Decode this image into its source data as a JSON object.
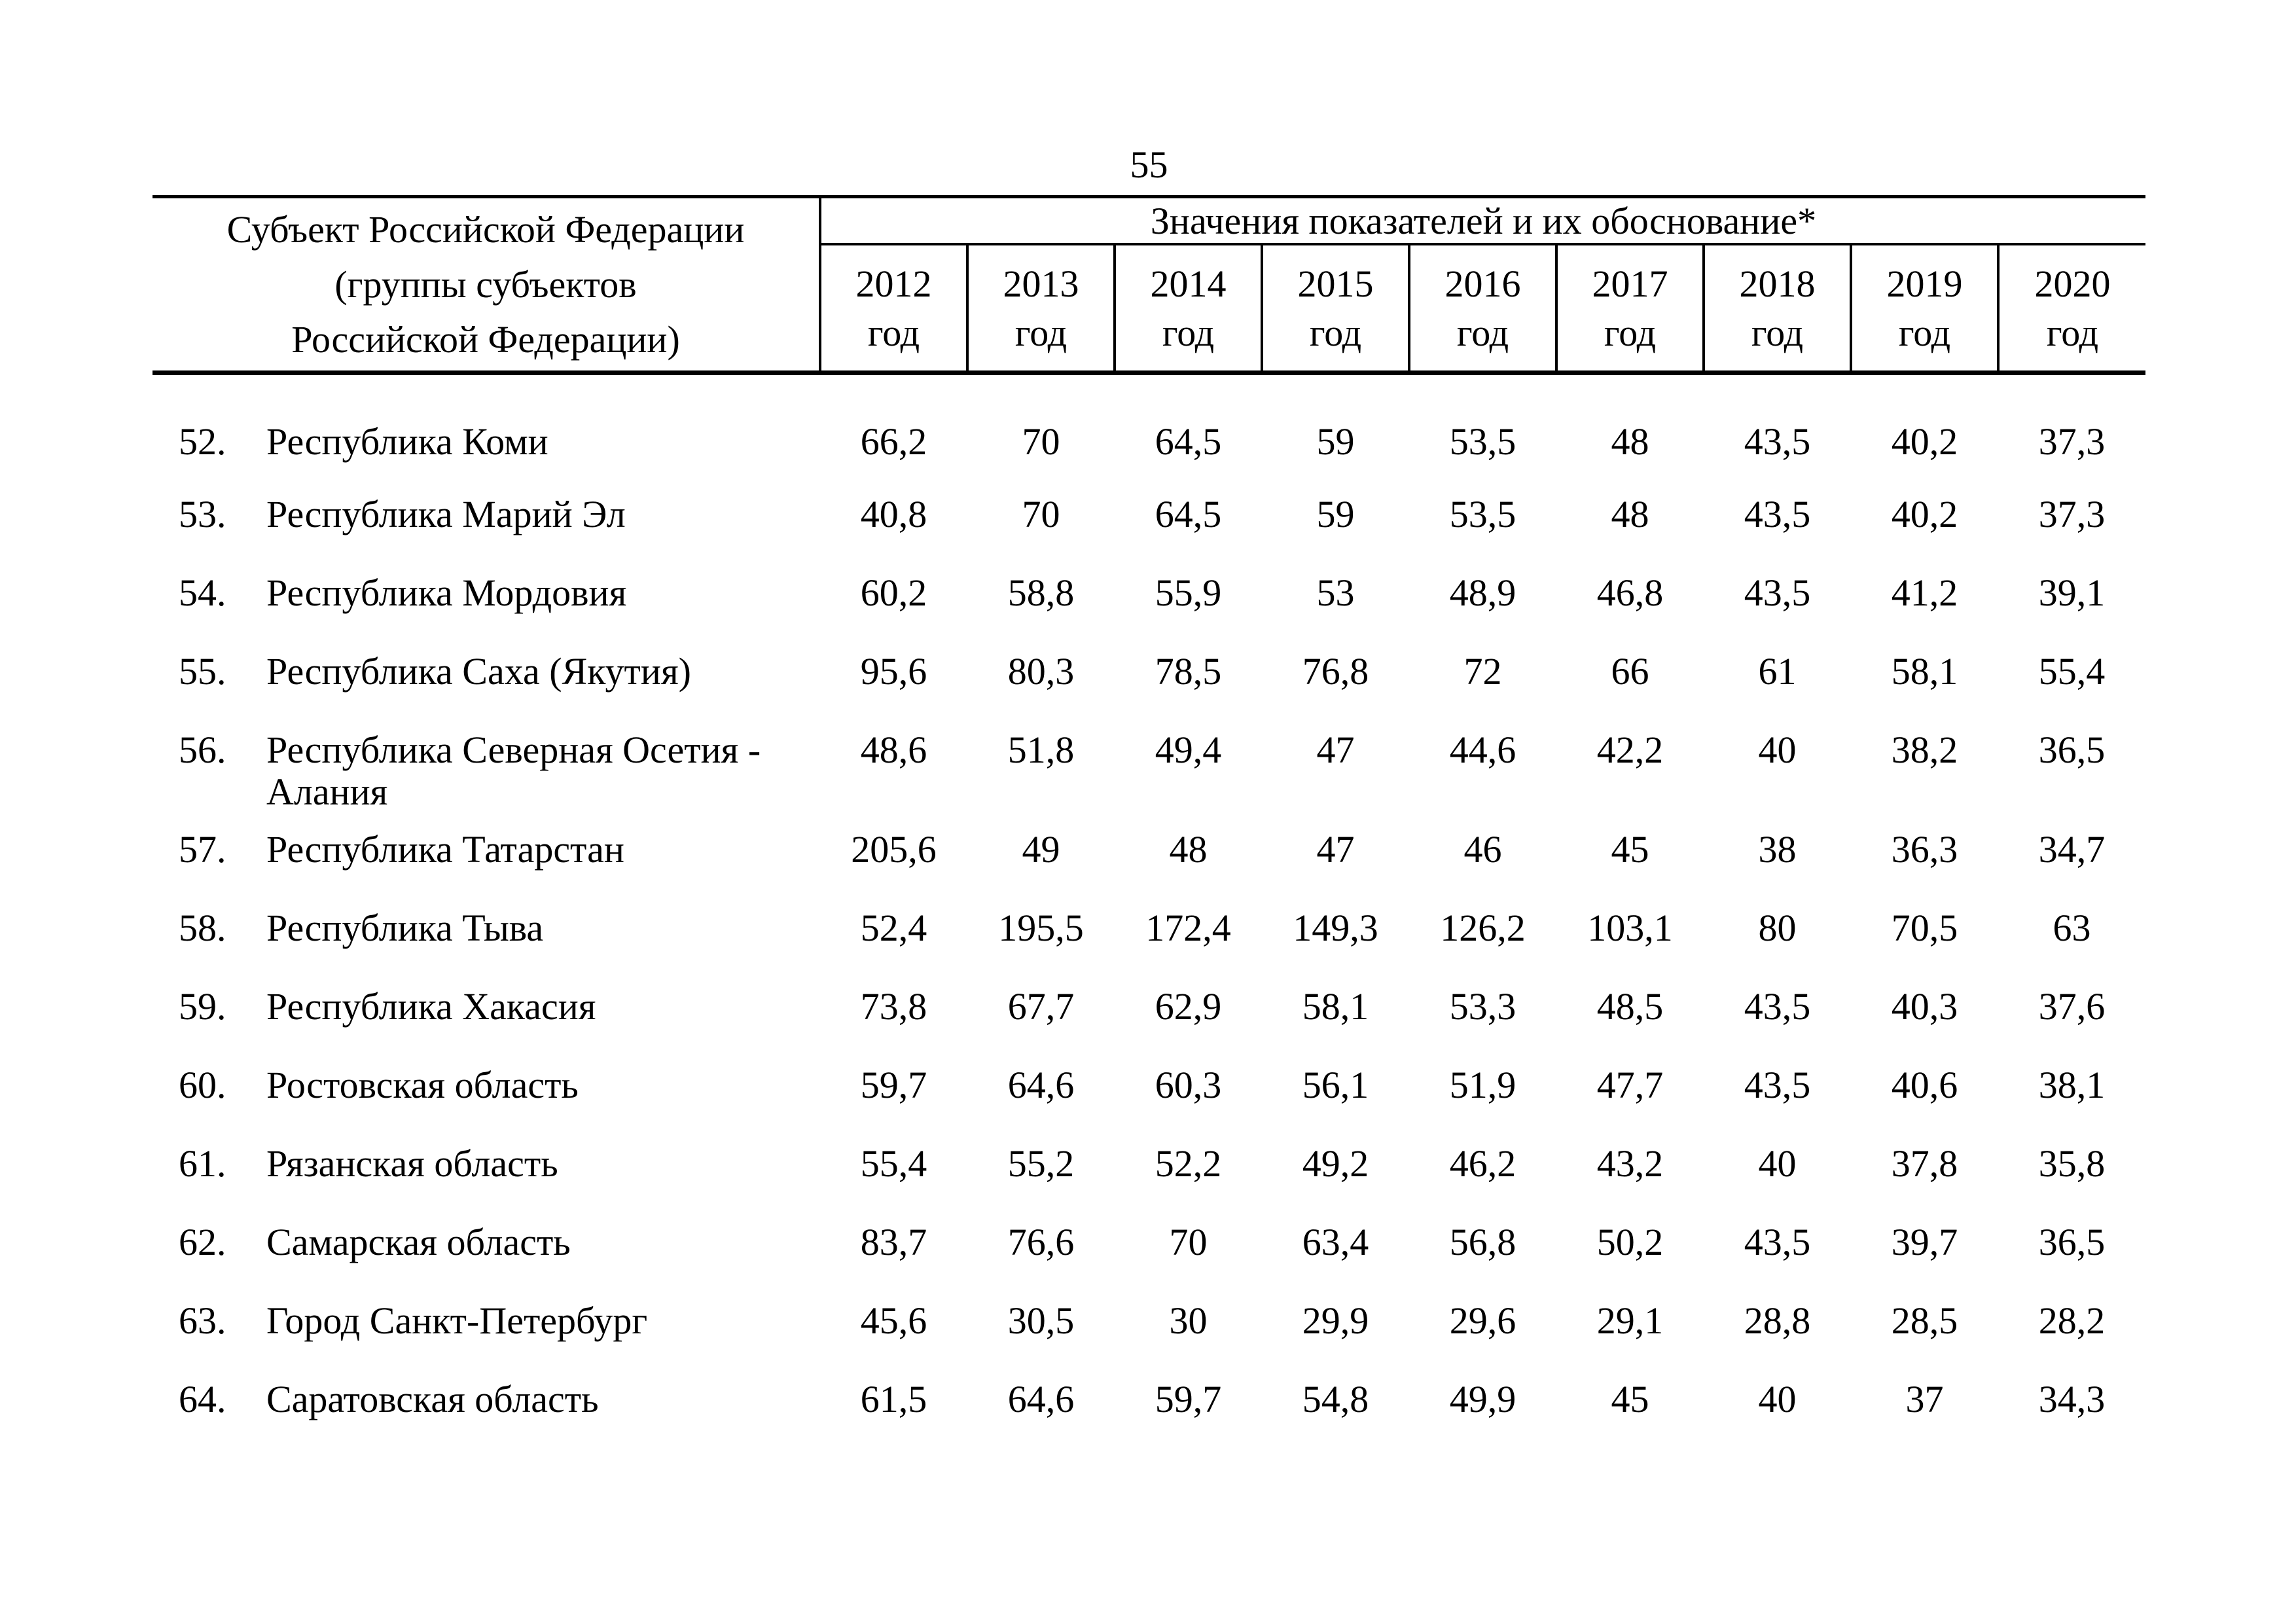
{
  "page": {
    "number": "55"
  },
  "table": {
    "header": {
      "subject": "Субъект Российской Федерации\n(группы субъектов\nРоссийской Федерации)",
      "values_title": "Значения показателей и их обоснование*",
      "year_unit": "год",
      "years": [
        "2012",
        "2013",
        "2014",
        "2015",
        "2016",
        "2017",
        "2018",
        "2019",
        "2020"
      ]
    },
    "rows": [
      {
        "num": "52.",
        "name": "Республика Коми",
        "values": [
          "66,2",
          "70",
          "64,5",
          "59",
          "53,5",
          "48",
          "43,5",
          "40,2",
          "37,3"
        ]
      },
      {
        "num": "53.",
        "name": "Республика Марий Эл",
        "values": [
          "40,8",
          "70",
          "64,5",
          "59",
          "53,5",
          "48",
          "43,5",
          "40,2",
          "37,3"
        ]
      },
      {
        "num": "54.",
        "name": "Республика Мордовия",
        "values": [
          "60,2",
          "58,8",
          "55,9",
          "53",
          "48,9",
          "46,8",
          "43,5",
          "41,2",
          "39,1"
        ]
      },
      {
        "num": "55.",
        "name": "Республика Саха (Якутия)",
        "values": [
          "95,6",
          "80,3",
          "78,5",
          "76,8",
          "72",
          "66",
          "61",
          "58,1",
          "55,4"
        ]
      },
      {
        "num": "56.",
        "name": "Республика Северная Осетия -\nАлания",
        "values": [
          "48,6",
          "51,8",
          "49,4",
          "47",
          "44,6",
          "42,2",
          "40",
          "38,2",
          "36,5"
        ]
      },
      {
        "num": "57.",
        "name": "Республика Татарстан",
        "values": [
          "205,6",
          "49",
          "48",
          "47",
          "46",
          "45",
          "38",
          "36,3",
          "34,7"
        ]
      },
      {
        "num": "58.",
        "name": "Республика Тыва",
        "values": [
          "52,4",
          "195,5",
          "172,4",
          "149,3",
          "126,2",
          "103,1",
          "80",
          "70,5",
          "63"
        ]
      },
      {
        "num": "59.",
        "name": "Республика Хакасия",
        "values": [
          "73,8",
          "67,7",
          "62,9",
          "58,1",
          "53,3",
          "48,5",
          "43,5",
          "40,3",
          "37,6"
        ]
      },
      {
        "num": "60.",
        "name": "Ростовская область",
        "values": [
          "59,7",
          "64,6",
          "60,3",
          "56,1",
          "51,9",
          "47,7",
          "43,5",
          "40,6",
          "38,1"
        ]
      },
      {
        "num": "61.",
        "name": "Рязанская область",
        "values": [
          "55,4",
          "55,2",
          "52,2",
          "49,2",
          "46,2",
          "43,2",
          "40",
          "37,8",
          "35,8"
        ]
      },
      {
        "num": "62.",
        "name": "Самарская область",
        "values": [
          "83,7",
          "76,6",
          "70",
          "63,4",
          "56,8",
          "50,2",
          "43,5",
          "39,7",
          "36,5"
        ]
      },
      {
        "num": "63.",
        "name": "Город Санкт-Петербург",
        "values": [
          "45,6",
          "30,5",
          "30",
          "29,9",
          "29,6",
          "29,1",
          "28,8",
          "28,5",
          "28,2"
        ]
      },
      {
        "num": "64.",
        "name": "Саратовская область",
        "values": [
          "61,5",
          "64,6",
          "59,7",
          "54,8",
          "49,9",
          "45",
          "40",
          "37",
          "34,3"
        ]
      }
    ]
  }
}
